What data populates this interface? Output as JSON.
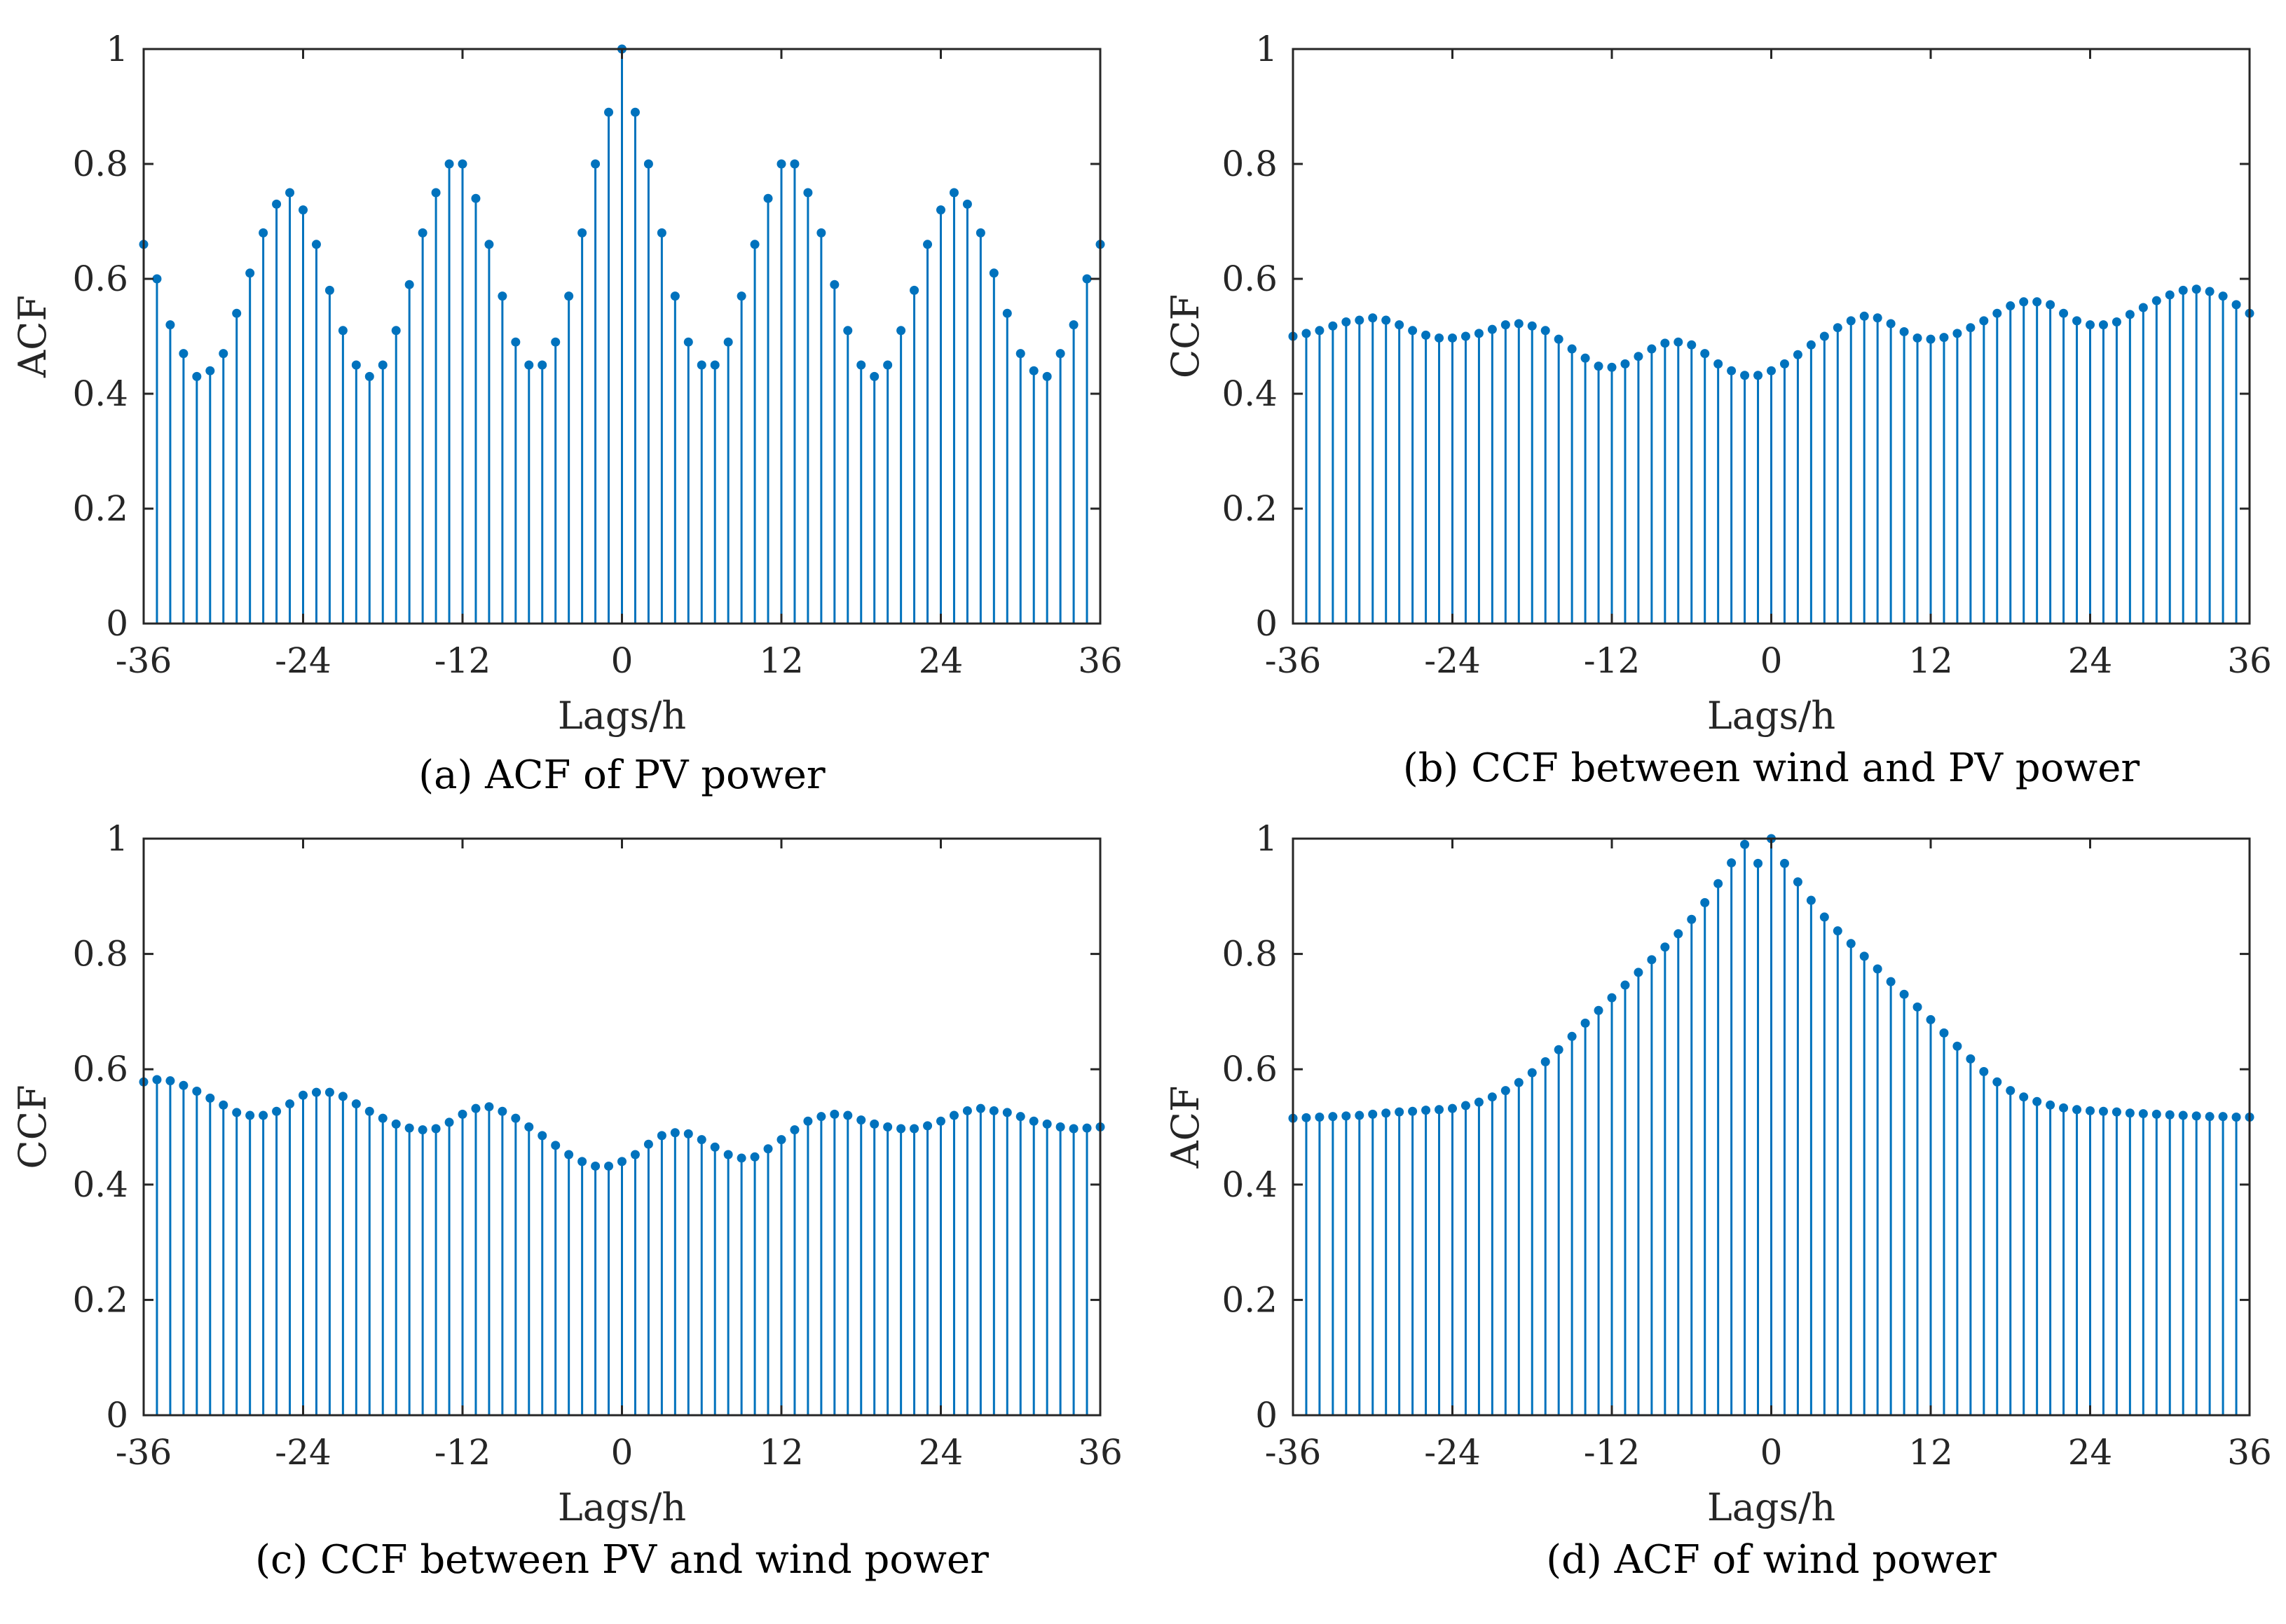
{
  "style": {
    "stem_color": "#0072BD",
    "axis_color": "#262626",
    "background": "#ffffff"
  },
  "chart_data": [
    {
      "id": "a",
      "type": "stem",
      "caption": "(a) ACF of PV power",
      "xlabel": "Lags/h",
      "ylabel": "ACF",
      "xlim": [
        -36,
        36
      ],
      "ylim": [
        0,
        1
      ],
      "xticks": [
        "-36",
        "-24",
        "-12",
        "0",
        "12",
        "24",
        "36"
      ],
      "yticks": [
        "0",
        "0.2",
        "0.4",
        "0.6",
        "0.8",
        "1"
      ],
      "grid": false,
      "x": [
        -36,
        -35,
        -34,
        -33,
        -32,
        -31,
        -30,
        -29,
        -28,
        -27,
        -26,
        -25,
        -24,
        -23,
        -22,
        -21,
        -20,
        -19,
        -18,
        -17,
        -16,
        -15,
        -14,
        -13,
        -12,
        -11,
        -10,
        -9,
        -8,
        -7,
        -6,
        -5,
        -4,
        -3,
        -2,
        -1,
        0,
        1,
        2,
        3,
        4,
        5,
        6,
        7,
        8,
        9,
        10,
        11,
        12,
        13,
        14,
        15,
        16,
        17,
        18,
        19,
        20,
        21,
        22,
        23,
        24,
        25,
        26,
        27,
        28,
        29,
        30,
        31,
        32,
        33,
        34,
        35,
        36
      ],
      "values": [
        0.66,
        0.6,
        0.52,
        0.47,
        0.43,
        0.44,
        0.47,
        0.54,
        0.61,
        0.68,
        0.73,
        0.75,
        0.72,
        0.66,
        0.58,
        0.51,
        0.45,
        0.43,
        0.45,
        0.51,
        0.59,
        0.68,
        0.75,
        0.8,
        0.8,
        0.74,
        0.66,
        0.57,
        0.49,
        0.45,
        0.45,
        0.49,
        0.57,
        0.68,
        0.8,
        0.89,
        1.0,
        0.89,
        0.8,
        0.68,
        0.57,
        0.49,
        0.45,
        0.45,
        0.49,
        0.57,
        0.66,
        0.74,
        0.8,
        0.8,
        0.75,
        0.68,
        0.59,
        0.51,
        0.45,
        0.43,
        0.45,
        0.51,
        0.58,
        0.66,
        0.72,
        0.75,
        0.73,
        0.68,
        0.61,
        0.54,
        0.47,
        0.44,
        0.43,
        0.47,
        0.52,
        0.6,
        0.66
      ]
    },
    {
      "id": "b",
      "type": "stem",
      "caption": "(b) CCF between wind and PV power",
      "xlabel": "Lags/h",
      "ylabel": "CCF",
      "xlim": [
        -36,
        36
      ],
      "ylim": [
        0,
        1
      ],
      "xticks": [
        "-36",
        "-24",
        "-12",
        "0",
        "12",
        "24",
        "36"
      ],
      "yticks": [
        "0",
        "0.2",
        "0.4",
        "0.6",
        "0.8",
        "1"
      ],
      "grid": false,
      "x": [
        -36,
        -35,
        -34,
        -33,
        -32,
        -31,
        -30,
        -29,
        -28,
        -27,
        -26,
        -25,
        -24,
        -23,
        -22,
        -21,
        -20,
        -19,
        -18,
        -17,
        -16,
        -15,
        -14,
        -13,
        -12,
        -11,
        -10,
        -9,
        -8,
        -7,
        -6,
        -5,
        -4,
        -3,
        -2,
        -1,
        0,
        1,
        2,
        3,
        4,
        5,
        6,
        7,
        8,
        9,
        10,
        11,
        12,
        13,
        14,
        15,
        16,
        17,
        18,
        19,
        20,
        21,
        22,
        23,
        24,
        25,
        26,
        27,
        28,
        29,
        30,
        31,
        32,
        33,
        34,
        35,
        36
      ],
      "values": [
        0.5,
        0.505,
        0.51,
        0.518,
        0.525,
        0.528,
        0.532,
        0.528,
        0.52,
        0.51,
        0.502,
        0.497,
        0.497,
        0.5,
        0.505,
        0.512,
        0.52,
        0.522,
        0.518,
        0.51,
        0.495,
        0.478,
        0.462,
        0.448,
        0.446,
        0.452,
        0.465,
        0.478,
        0.488,
        0.49,
        0.485,
        0.47,
        0.452,
        0.44,
        0.432,
        0.432,
        0.44,
        0.452,
        0.468,
        0.485,
        0.5,
        0.515,
        0.527,
        0.535,
        0.532,
        0.522,
        0.508,
        0.497,
        0.495,
        0.498,
        0.505,
        0.515,
        0.527,
        0.54,
        0.553,
        0.56,
        0.56,
        0.555,
        0.54,
        0.527,
        0.52,
        0.52,
        0.525,
        0.538,
        0.55,
        0.562,
        0.572,
        0.58,
        0.582,
        0.578,
        0.57,
        0.555,
        0.54
      ]
    },
    {
      "id": "c",
      "type": "stem",
      "caption": "(c) CCF between PV and wind power",
      "xlabel": "Lags/h",
      "ylabel": "CCF",
      "xlim": [
        -36,
        36
      ],
      "ylim": [
        0,
        1
      ],
      "xticks": [
        "-36",
        "-24",
        "-12",
        "0",
        "12",
        "24",
        "36"
      ],
      "yticks": [
        "0",
        "0.2",
        "0.4",
        "0.6",
        "0.8",
        "1"
      ],
      "grid": false,
      "x": [
        -36,
        -35,
        -34,
        -33,
        -32,
        -31,
        -30,
        -29,
        -28,
        -27,
        -26,
        -25,
        -24,
        -23,
        -22,
        -21,
        -20,
        -19,
        -18,
        -17,
        -16,
        -15,
        -14,
        -13,
        -12,
        -11,
        -10,
        -9,
        -8,
        -7,
        -6,
        -5,
        -4,
        -3,
        -2,
        -1,
        0,
        1,
        2,
        3,
        4,
        5,
        6,
        7,
        8,
        9,
        10,
        11,
        12,
        13,
        14,
        15,
        16,
        17,
        18,
        19,
        20,
        21,
        22,
        23,
        24,
        25,
        26,
        27,
        28,
        29,
        30,
        31,
        32,
        33,
        34,
        35,
        36
      ],
      "values": [
        0.578,
        0.582,
        0.58,
        0.572,
        0.562,
        0.55,
        0.538,
        0.525,
        0.52,
        0.52,
        0.527,
        0.54,
        0.555,
        0.56,
        0.56,
        0.553,
        0.54,
        0.527,
        0.515,
        0.505,
        0.498,
        0.495,
        0.497,
        0.508,
        0.522,
        0.532,
        0.535,
        0.527,
        0.515,
        0.5,
        0.485,
        0.468,
        0.452,
        0.44,
        0.432,
        0.432,
        0.44,
        0.452,
        0.47,
        0.485,
        0.49,
        0.488,
        0.478,
        0.465,
        0.452,
        0.446,
        0.448,
        0.462,
        0.478,
        0.495,
        0.51,
        0.518,
        0.522,
        0.52,
        0.512,
        0.505,
        0.5,
        0.497,
        0.497,
        0.502,
        0.51,
        0.52,
        0.528,
        0.532,
        0.528,
        0.525,
        0.518,
        0.51,
        0.505,
        0.5,
        0.497,
        0.498,
        0.5
      ]
    },
    {
      "id": "d",
      "type": "stem",
      "caption": "(d) ACF of wind power",
      "xlabel": "Lags/h",
      "ylabel": "ACF",
      "xlim": [
        -36,
        36
      ],
      "ylim": [
        0,
        1
      ],
      "xticks": [
        "-36",
        "-24",
        "-12",
        "0",
        "12",
        "24",
        "36"
      ],
      "yticks": [
        "0",
        "0.2",
        "0.4",
        "0.6",
        "0.8",
        "1"
      ],
      "grid": false,
      "x": [
        -36,
        -35,
        -34,
        -33,
        -32,
        -31,
        -30,
        -29,
        -28,
        -27,
        -26,
        -25,
        -24,
        -23,
        -22,
        -21,
        -20,
        -19,
        -18,
        -17,
        -16,
        -15,
        -14,
        -13,
        -12,
        -11,
        -10,
        -9,
        -8,
        -7,
        -6,
        -5,
        -4,
        -3,
        -2,
        -1,
        0,
        1,
        2,
        3,
        4,
        5,
        6,
        7,
        8,
        9,
        10,
        11,
        12,
        13,
        14,
        15,
        16,
        17,
        18,
        19,
        20,
        21,
        22,
        23,
        24,
        25,
        26,
        27,
        28,
        29,
        30,
        31,
        32,
        33,
        34,
        35,
        36
      ],
      "values": [
        0.515,
        0.516,
        0.517,
        0.518,
        0.519,
        0.52,
        0.522,
        0.524,
        0.526,
        0.527,
        0.529,
        0.53,
        0.532,
        0.537,
        0.543,
        0.552,
        0.563,
        0.577,
        0.594,
        0.613,
        0.634,
        0.657,
        0.68,
        0.702,
        0.724,
        0.746,
        0.768,
        0.79,
        0.812,
        0.835,
        0.86,
        0.889,
        0.922,
        0.958,
        0.99,
        0.957,
        1.0,
        0.957,
        0.925,
        0.893,
        0.864,
        0.84,
        0.818,
        0.796,
        0.774,
        0.752,
        0.73,
        0.708,
        0.686,
        0.663,
        0.64,
        0.618,
        0.596,
        0.578,
        0.563,
        0.552,
        0.544,
        0.538,
        0.533,
        0.53,
        0.528,
        0.527,
        0.526,
        0.524,
        0.523,
        0.522,
        0.521,
        0.52,
        0.519,
        0.518,
        0.518,
        0.517,
        0.517
      ]
    }
  ]
}
